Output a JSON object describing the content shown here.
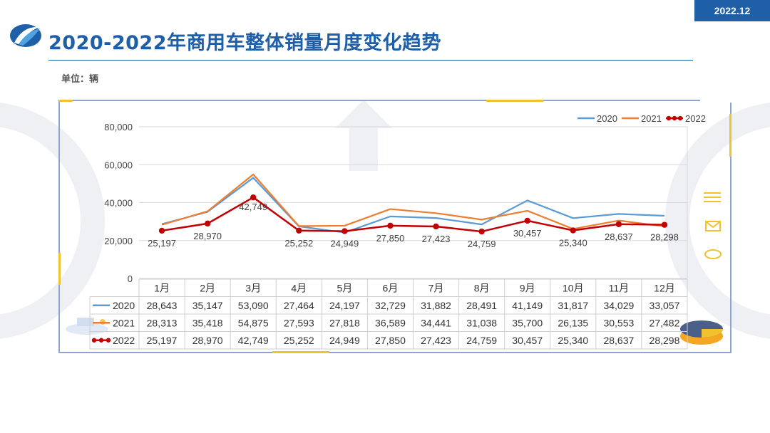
{
  "header": {
    "date": "2022.12",
    "title": "2020-2022年商用车整体销量月度变化趋势",
    "unit_label": "单位：辆"
  },
  "colors": {
    "brand": "#1f5fa8",
    "accent": "#f2c12e",
    "frame": "#8fa4cf",
    "s2020": "#5b9bd5",
    "s2021": "#ed7d31",
    "s2022": "#c00000"
  },
  "chart_data": {
    "type": "line",
    "title": "",
    "xlabel": "",
    "ylabel": "",
    "ylim": [
      0,
      80000
    ],
    "yticks": [
      0,
      20000,
      40000,
      60000,
      80000
    ],
    "ytick_labels": [
      "0",
      "20,000",
      "40,000",
      "60,000",
      "80,000"
    ],
    "categories": [
      "1月",
      "2月",
      "3月",
      "4月",
      "5月",
      "6月",
      "7月",
      "8月",
      "9月",
      "10月",
      "11月",
      "12月"
    ],
    "legend_position": "top-right",
    "grid": true,
    "series": [
      {
        "name": "2020",
        "color": "#5b9bd5",
        "values": [
          28643,
          35147,
          53090,
          27464,
          24197,
          32729,
          31882,
          28491,
          41149,
          31817,
          34029,
          33057
        ],
        "table": [
          "28,643",
          "35,147",
          "53,090",
          "27,464",
          "24,197",
          "32,729",
          "31,882",
          "28,491",
          "41,149",
          "31,817",
          "34,029",
          "33,057"
        ]
      },
      {
        "name": "2021",
        "color": "#ed7d31",
        "values": [
          28313,
          35418,
          54875,
          27593,
          27818,
          36589,
          34441,
          31038,
          35700,
          26135,
          30553,
          27482
        ],
        "table": [
          "28,313",
          "35,418",
          "54,875",
          "27,593",
          "27,818",
          "36,589",
          "34,441",
          "31,038",
          "35,700",
          "26,135",
          "30,553",
          "27,482"
        ]
      },
      {
        "name": "2022",
        "color": "#c00000",
        "markers": true,
        "values": [
          25197,
          28970,
          42749,
          25252,
          24949,
          27850,
          27423,
          24759,
          30457,
          25340,
          28637,
          28298
        ],
        "table": [
          "25,197",
          "28,970",
          "42,749",
          "25,252",
          "24,949",
          "27,850",
          "27,423",
          "24,759",
          "30,457",
          "25,340",
          "28,637",
          "28,298"
        ],
        "data_labels": [
          "25,197",
          "28,970",
          "42,749",
          "25,252",
          "24,949",
          "27,850",
          "27,423",
          "24,759",
          "30,457",
          "25,340",
          "28,637",
          "28,298"
        ]
      }
    ]
  }
}
